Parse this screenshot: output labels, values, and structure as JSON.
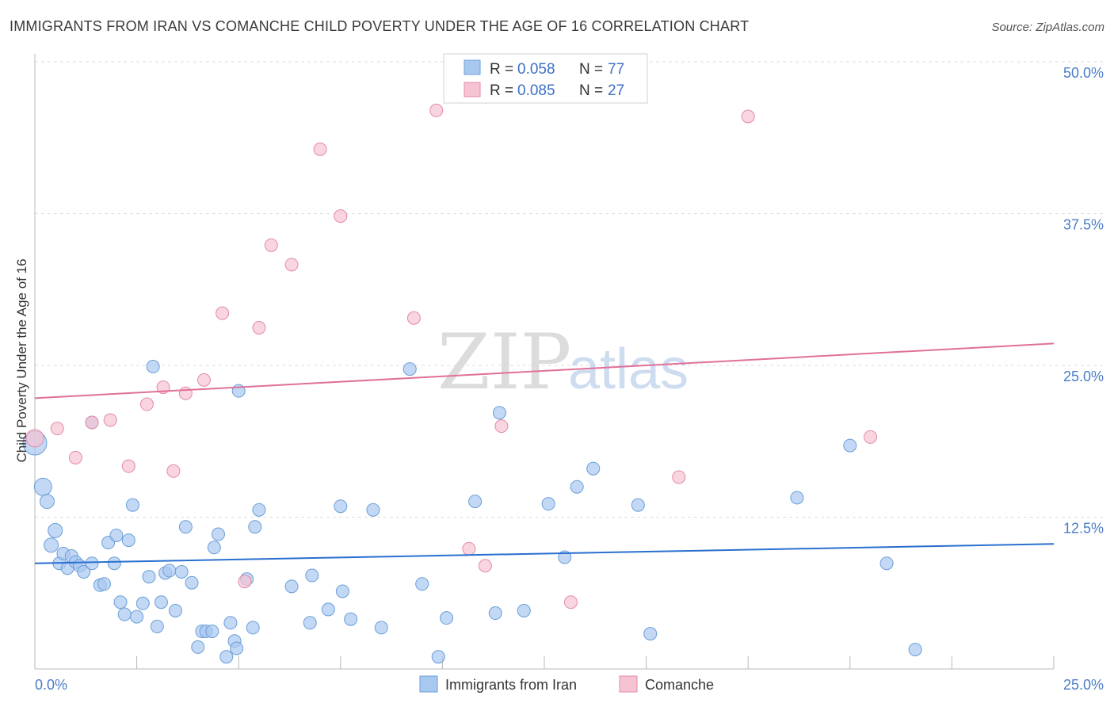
{
  "chart_data": {
    "type": "scatter",
    "title": "IMMIGRANTS FROM IRAN VS COMANCHE CHILD POVERTY UNDER THE AGE OF 16 CORRELATION CHART",
    "source": "Source: ZipAtlas.com",
    "ylabel": "Child Poverty Under the Age of 16",
    "xlim": [
      0,
      25
    ],
    "ylim": [
      0,
      52
    ],
    "x_tick_labels": [
      "0.0%",
      "25.0%"
    ],
    "y_ticks": [
      12.5,
      25.0,
      37.5,
      50.0
    ],
    "y_tick_labels": [
      "12.5%",
      "25.0%",
      "37.5%",
      "50.0%"
    ],
    "grid": true,
    "legend_position": "top-center",
    "watermark": {
      "zip": "ZIP",
      "atlas": "atlas"
    },
    "stats": [
      {
        "r_label": "R = ",
        "r": "0.058",
        "n_label": "N = ",
        "n": "77"
      },
      {
        "r_label": "R = ",
        "r": "0.085",
        "n_label": "N = ",
        "n": "27"
      }
    ],
    "series": [
      {
        "name": "Immigrants from Iran",
        "color": "#a9c8f0",
        "stroke": "#6a9fd8",
        "line_color": "#2a6fcf",
        "trend": {
          "x": [
            0,
            25
          ],
          "y": [
            8.7,
            10.3
          ]
        },
        "points": [
          [
            0.0,
            18.6,
            30
          ],
          [
            0.2,
            15.0,
            22
          ],
          [
            0.3,
            13.8,
            18
          ],
          [
            0.4,
            10.2,
            18
          ],
          [
            0.5,
            11.4,
            18
          ],
          [
            0.6,
            8.7,
            16
          ],
          [
            0.7,
            9.5,
            16
          ],
          [
            0.8,
            8.3,
            16
          ],
          [
            0.9,
            9.3,
            16
          ],
          [
            1.0,
            8.8,
            16
          ],
          [
            1.1,
            8.5,
            16
          ],
          [
            1.2,
            8.0,
            16
          ],
          [
            1.4,
            8.7,
            16
          ],
          [
            1.6,
            6.9,
            16
          ],
          [
            1.7,
            7.0,
            16
          ],
          [
            1.8,
            10.4,
            16
          ],
          [
            1.95,
            8.7,
            16
          ],
          [
            2.0,
            11.0,
            16
          ],
          [
            2.1,
            5.5,
            16
          ],
          [
            2.2,
            4.5,
            16
          ],
          [
            2.3,
            10.6,
            16
          ],
          [
            2.4,
            13.5,
            16
          ],
          [
            2.5,
            4.3,
            16
          ],
          [
            2.65,
            5.4,
            16
          ],
          [
            2.8,
            7.6,
            16
          ],
          [
            2.9,
            24.9,
            16
          ],
          [
            3.0,
            3.5,
            16
          ],
          [
            3.1,
            5.5,
            16
          ],
          [
            3.2,
            7.9,
            16
          ],
          [
            3.3,
            8.1,
            16
          ],
          [
            3.45,
            4.8,
            16
          ],
          [
            3.6,
            8.0,
            16
          ],
          [
            3.7,
            11.7,
            16
          ],
          [
            3.85,
            7.1,
            16
          ],
          [
            4.0,
            1.8,
            16
          ],
          [
            4.1,
            3.1,
            16
          ],
          [
            4.2,
            3.1,
            16
          ],
          [
            4.35,
            3.1,
            16
          ],
          [
            4.4,
            10.0,
            16
          ],
          [
            4.5,
            11.1,
            16
          ],
          [
            4.7,
            1.0,
            16
          ],
          [
            4.8,
            3.8,
            16
          ],
          [
            4.9,
            2.3,
            16
          ],
          [
            4.95,
            1.7,
            16
          ],
          [
            5.0,
            22.9,
            16
          ],
          [
            5.2,
            7.4,
            16
          ],
          [
            5.35,
            3.4,
            16
          ],
          [
            5.4,
            11.7,
            16
          ],
          [
            5.5,
            13.1,
            16
          ],
          [
            6.3,
            6.8,
            16
          ],
          [
            6.75,
            3.8,
            16
          ],
          [
            6.8,
            7.7,
            16
          ],
          [
            7.2,
            4.9,
            16
          ],
          [
            7.5,
            13.4,
            16
          ],
          [
            7.55,
            6.4,
            16
          ],
          [
            7.75,
            4.1,
            16
          ],
          [
            8.3,
            13.1,
            16
          ],
          [
            8.5,
            3.4,
            16
          ],
          [
            9.2,
            24.7,
            16
          ],
          [
            9.5,
            7.0,
            16
          ],
          [
            9.9,
            1.0,
            16
          ],
          [
            10.1,
            4.2,
            16
          ],
          [
            10.8,
            13.8,
            16
          ],
          [
            11.3,
            4.6,
            16
          ],
          [
            11.4,
            21.1,
            16
          ],
          [
            12.0,
            4.8,
            16
          ],
          [
            12.6,
            13.6,
            16
          ],
          [
            13.0,
            9.2,
            16
          ],
          [
            13.3,
            15.0,
            16
          ],
          [
            13.7,
            16.5,
            16
          ],
          [
            14.8,
            13.5,
            16
          ],
          [
            15.1,
            2.9,
            16
          ],
          [
            18.7,
            14.1,
            16
          ],
          [
            20.0,
            18.4,
            16
          ],
          [
            20.9,
            8.7,
            16
          ],
          [
            21.6,
            1.6,
            16
          ],
          [
            1.4,
            20.3,
            16
          ]
        ]
      },
      {
        "name": "Comanche",
        "color": "#f6c3d3",
        "stroke": "#e48aa8",
        "line_color": "#e07099",
        "trend": {
          "x": [
            0,
            25
          ],
          "y": [
            22.3,
            26.8
          ]
        },
        "points": [
          [
            0.0,
            19.0,
            22
          ],
          [
            0.55,
            19.8,
            16
          ],
          [
            1.0,
            17.4,
            16
          ],
          [
            1.4,
            20.3,
            16
          ],
          [
            1.85,
            20.5,
            16
          ],
          [
            2.3,
            16.7,
            16
          ],
          [
            2.75,
            21.8,
            16
          ],
          [
            3.15,
            23.2,
            16
          ],
          [
            3.4,
            16.3,
            16
          ],
          [
            3.7,
            22.7,
            16
          ],
          [
            4.15,
            23.8,
            16
          ],
          [
            4.6,
            29.3,
            16
          ],
          [
            5.15,
            7.2,
            16
          ],
          [
            5.5,
            28.1,
            16
          ],
          [
            5.8,
            34.9,
            16
          ],
          [
            6.3,
            33.3,
            16
          ],
          [
            7.0,
            42.8,
            16
          ],
          [
            7.5,
            37.3,
            16
          ],
          [
            9.3,
            28.9,
            16
          ],
          [
            9.85,
            46.0,
            16
          ],
          [
            10.65,
            9.9,
            16
          ],
          [
            11.05,
            8.5,
            16
          ],
          [
            11.45,
            20.0,
            16
          ],
          [
            13.15,
            5.5,
            16
          ],
          [
            15.8,
            15.8,
            16
          ],
          [
            17.5,
            45.5,
            16
          ],
          [
            20.5,
            19.1,
            16
          ]
        ]
      }
    ]
  }
}
